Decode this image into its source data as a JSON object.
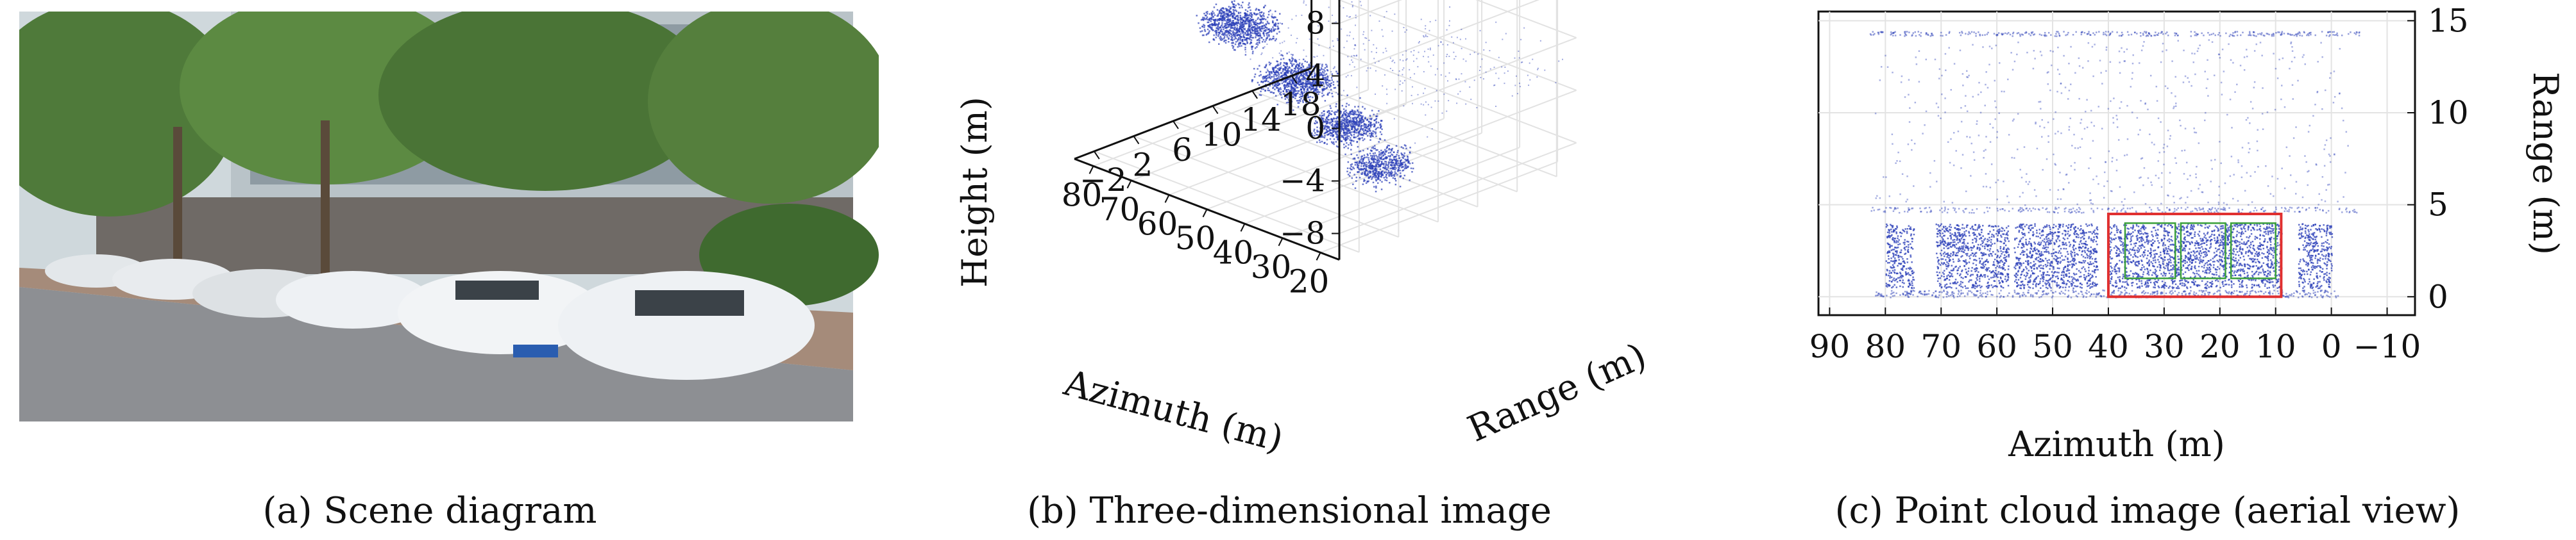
{
  "captions": {
    "a": "(a) Scene diagram",
    "b": "(b) Three-dimensional image",
    "c": "(c) Point cloud image (aerial view)"
  },
  "colors": {
    "points": "#2b3fb8",
    "highlight_box": "#e03030",
    "target_boxes": "#3aa03a",
    "sky": "#cfd8dc",
    "foliage": "#4f7a3a",
    "car_white": "#eef1f4",
    "road": "#8d8f93"
  },
  "chart_data": [
    {
      "type": "scatter",
      "projection": "3d",
      "title": "",
      "xlabel": "Azimuth (m)",
      "ylabel": "Range (m)",
      "zlabel": "Height (m)",
      "x_ticks": [
        "80",
        "70",
        "60",
        "50",
        "40",
        "30",
        "20"
      ],
      "y_ticks": [
        "−2",
        "2",
        "6",
        "10",
        "14",
        "18"
      ],
      "z_ticks": [
        "8",
        "4",
        "0",
        "−4",
        "−8"
      ],
      "xlim": [
        15,
        85
      ],
      "ylim": [
        -4,
        20
      ],
      "zlim": [
        -10,
        10
      ],
      "grid": true,
      "clusters": [
        {
          "x_range": [
            51,
            64
          ],
          "y_range": [
            0,
            4
          ],
          "z_mean": 1.5
        },
        {
          "x_range": [
            36,
            49
          ],
          "y_range": [
            0,
            4
          ],
          "z_mean": -1
        },
        {
          "x_range": [
            24,
            34
          ],
          "y_range": [
            0,
            4
          ],
          "z_mean": -3
        },
        {
          "x_range": [
            16,
            24
          ],
          "y_range": [
            0,
            4
          ],
          "z_mean": -5
        }
      ]
    },
    {
      "type": "scatter",
      "title": "",
      "xlabel": "Azimuth (m)",
      "ylabel": "Range (m)",
      "x_ticks": [
        "90",
        "80",
        "70",
        "60",
        "50",
        "40",
        "30",
        "20",
        "10",
        "0",
        "−10"
      ],
      "y_ticks": [
        "0",
        "5",
        "10",
        "15"
      ],
      "xlim": [
        92,
        -15
      ],
      "ylim": [
        -1,
        15.5
      ],
      "x_reversed": true,
      "grid": true,
      "clusters": [
        {
          "x_range": [
            75,
            80
          ],
          "y_range": [
            0.5,
            4
          ]
        },
        {
          "x_range": [
            58,
            71
          ],
          "y_range": [
            0.5,
            4
          ]
        },
        {
          "x_range": [
            42,
            57
          ],
          "y_range": [
            0.5,
            4
          ]
        },
        {
          "x_range": [
            9,
            40
          ],
          "y_range": [
            0.5,
            4
          ]
        },
        {
          "x_range": [
            0,
            6
          ],
          "y_range": [
            0.5,
            4
          ]
        }
      ],
      "highlight_region": {
        "x": [
          9,
          40
        ],
        "y": [
          0,
          4.5
        ]
      },
      "target_regions": [
        {
          "x": [
            28,
            37
          ],
          "y": [
            1,
            4
          ]
        },
        {
          "x": [
            19,
            27
          ],
          "y": [
            1,
            4
          ]
        },
        {
          "x": [
            10,
            18
          ],
          "y": [
            1,
            4
          ]
        }
      ]
    }
  ]
}
